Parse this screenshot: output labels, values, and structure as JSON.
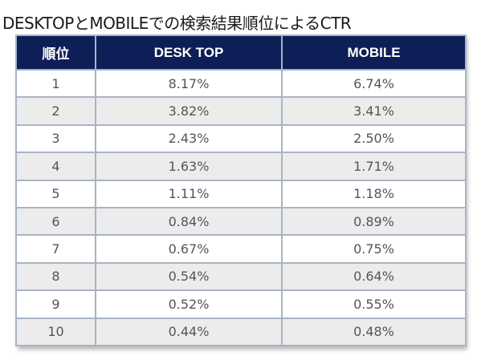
{
  "title": "DESKTOPとMOBILEでの検索結果順位によるCTR",
  "table": {
    "headers": [
      "順位",
      "DESK TOP",
      "MOBILE"
    ],
    "rows": [
      [
        "1",
        "8.17%",
        "6.74%"
      ],
      [
        "2",
        "3.82%",
        "3.41%"
      ],
      [
        "3",
        "2.43%",
        "2.50%"
      ],
      [
        "4",
        "1.63%",
        "1.71%"
      ],
      [
        "5",
        "1.11%",
        "1.18%"
      ],
      [
        "6",
        "0.84%",
        "0.89%"
      ],
      [
        "7",
        "0.67%",
        "0.75%"
      ],
      [
        "8",
        "0.54%",
        "0.64%"
      ],
      [
        "9",
        "0.52%",
        "0.55%"
      ],
      [
        "10",
        "0.44%",
        "0.48%"
      ]
    ]
  },
  "colors": {
    "header_bg": "#0e1f57",
    "header_text": "#ffffff",
    "border": "#a8b4c4",
    "row_alt_bg": "#ececec",
    "cell_text": "#555555"
  },
  "chart_data": {
    "type": "table",
    "title": "DESKTOPとMOBILEでの検索結果順位によるCTR",
    "columns": [
      "順位",
      "DESK TOP",
      "MOBILE"
    ],
    "categories": [
      1,
      2,
      3,
      4,
      5,
      6,
      7,
      8,
      9,
      10
    ],
    "series": [
      {
        "name": "DESK TOP",
        "values": [
          8.17,
          3.82,
          2.43,
          1.63,
          1.11,
          0.84,
          0.67,
          0.54,
          0.52,
          0.44
        ]
      },
      {
        "name": "MOBILE",
        "values": [
          6.74,
          3.41,
          2.5,
          1.71,
          1.18,
          0.89,
          0.75,
          0.64,
          0.55,
          0.48
        ]
      }
    ]
  }
}
